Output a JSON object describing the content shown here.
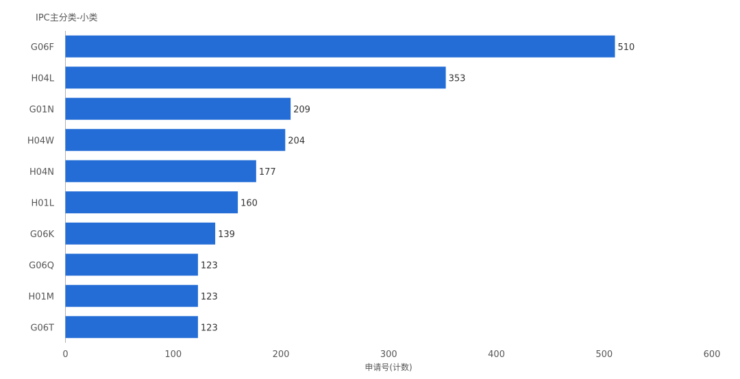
{
  "chart_data": {
    "type": "bar",
    "orientation": "horizontal",
    "title": "",
    "ylabel": "IPC主分类-小类",
    "xlabel": "申请号(计数)",
    "categories": [
      "G06F",
      "H04L",
      "G01N",
      "H04W",
      "H04N",
      "H01L",
      "G06K",
      "G06Q",
      "H01M",
      "G06T"
    ],
    "values": [
      510,
      353,
      209,
      204,
      177,
      160,
      139,
      123,
      123,
      123
    ],
    "xlim": [
      0,
      600
    ],
    "xticks": [
      0,
      100,
      200,
      300,
      400,
      500,
      600
    ],
    "grid": false,
    "legend": "none",
    "bar_color": "#246DD6"
  }
}
